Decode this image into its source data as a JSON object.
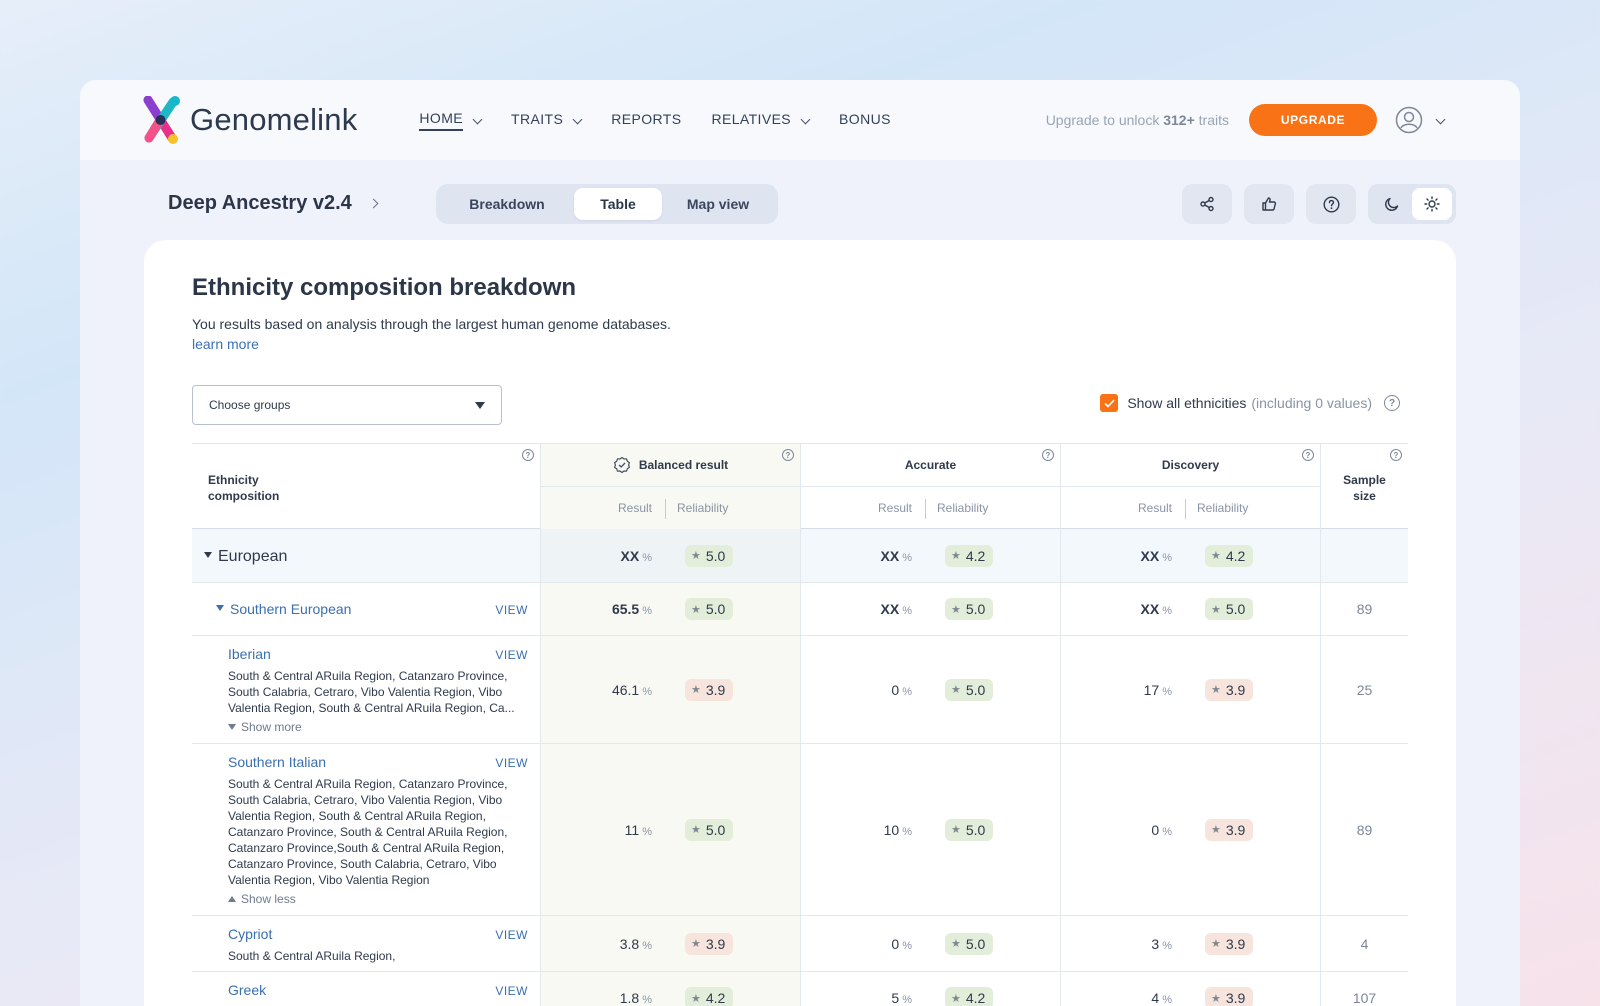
{
  "brand": {
    "name": "Genomelink"
  },
  "nav": [
    {
      "label": "HOME",
      "active": true,
      "dropdown": true
    },
    {
      "label": "TRAITS",
      "dropdown": true
    },
    {
      "label": "REPORTS",
      "dropdown": false
    },
    {
      "label": "RELATIVES",
      "dropdown": true
    },
    {
      "label": "BONUS",
      "dropdown": false
    }
  ],
  "upsell": {
    "prefix": "Upgrade to unlock",
    "count": "312+",
    "suffix": "traits",
    "button": "UPGRADE"
  },
  "page": {
    "title": "Deep Ancestry v2.4"
  },
  "view_tabs": [
    {
      "label": "Breakdown",
      "active": false
    },
    {
      "label": "Table",
      "active": true
    },
    {
      "label": "Map view",
      "active": false
    }
  ],
  "toolbar_icons": [
    "share-icon",
    "thumbs-up-icon",
    "help-icon",
    "moon-icon",
    "sun-icon"
  ],
  "card": {
    "title": "Ethnicity composition breakdown",
    "description": "You results based on analysis through the largest human genome databases.",
    "learn_more": "learn more",
    "select_placeholder": "Choose groups",
    "show_all_label": "Show all ethnicities",
    "show_all_note": "(including 0 values)",
    "show_all_checked": true
  },
  "table": {
    "eth_header": [
      "Ethnicity",
      "composition"
    ],
    "groups": [
      {
        "title": "Balanced result",
        "result": "Result",
        "reliability": "Reliability"
      },
      {
        "title": "Accurate",
        "result": "Result",
        "reliability": "Reliability"
      },
      {
        "title": "Discovery",
        "result": "Result",
        "reliability": "Reliability"
      }
    ],
    "sample_header": [
      "Sample",
      "size"
    ],
    "view_label": "VIEW",
    "pct": "%",
    "rows": {
      "european": {
        "name": "European",
        "b": [
          "XX",
          "5.0"
        ],
        "a": [
          "XX",
          "4.2"
        ],
        "d": [
          "XX",
          "4.2"
        ]
      },
      "southern_european": {
        "name": "Southern European",
        "b": [
          "65.5",
          "5.0"
        ],
        "a": [
          "XX",
          "5.0"
        ],
        "d": [
          "XX",
          "5.0"
        ],
        "sample": "89"
      },
      "iberian": {
        "name": "Iberian",
        "regions": "South & Central ARuila Region, Catanzaro Province, South Calabria, Cetraro, Vibo Valentia Region, Vibo Valentia Region, South & Central ARuila Region, Ca...",
        "toggle": "Show more",
        "b": [
          "46.1",
          "3.9"
        ],
        "a": [
          "0",
          "5.0"
        ],
        "d": [
          "17",
          "3.9"
        ],
        "sample": "25"
      },
      "southern_italian": {
        "name": "Southern Italian",
        "regions": "South & Central ARuila Region, Catanzaro Province, South Calabria, Cetraro, Vibo Valentia Region, Vibo Valentia Region, South & Central ARuila Region, Catanzaro Province, South & Central ARuila Region, Catanzaro Province,South & Central ARuila Region, Catanzaro Province, South Calabria, Cetraro, Vibo Valentia Region, Vibo Valentia Region",
        "toggle": "Show less",
        "b": [
          "11",
          "5.0"
        ],
        "a": [
          "10",
          "5.0"
        ],
        "d": [
          "0",
          "3.9"
        ],
        "sample": "89"
      },
      "cypriot": {
        "name": "Cypriot",
        "regions": "South & Central ARuila Region,",
        "b": [
          "3.8",
          "3.9"
        ],
        "a": [
          "0",
          "5.0"
        ],
        "d": [
          "3",
          "3.9"
        ],
        "sample": "4"
      },
      "greek": {
        "name": "Greek",
        "b": [
          "1.8",
          "4.2"
        ],
        "a": [
          "5",
          "4.2"
        ],
        "d": [
          "4",
          "3.9"
        ],
        "sample": "107"
      }
    }
  }
}
